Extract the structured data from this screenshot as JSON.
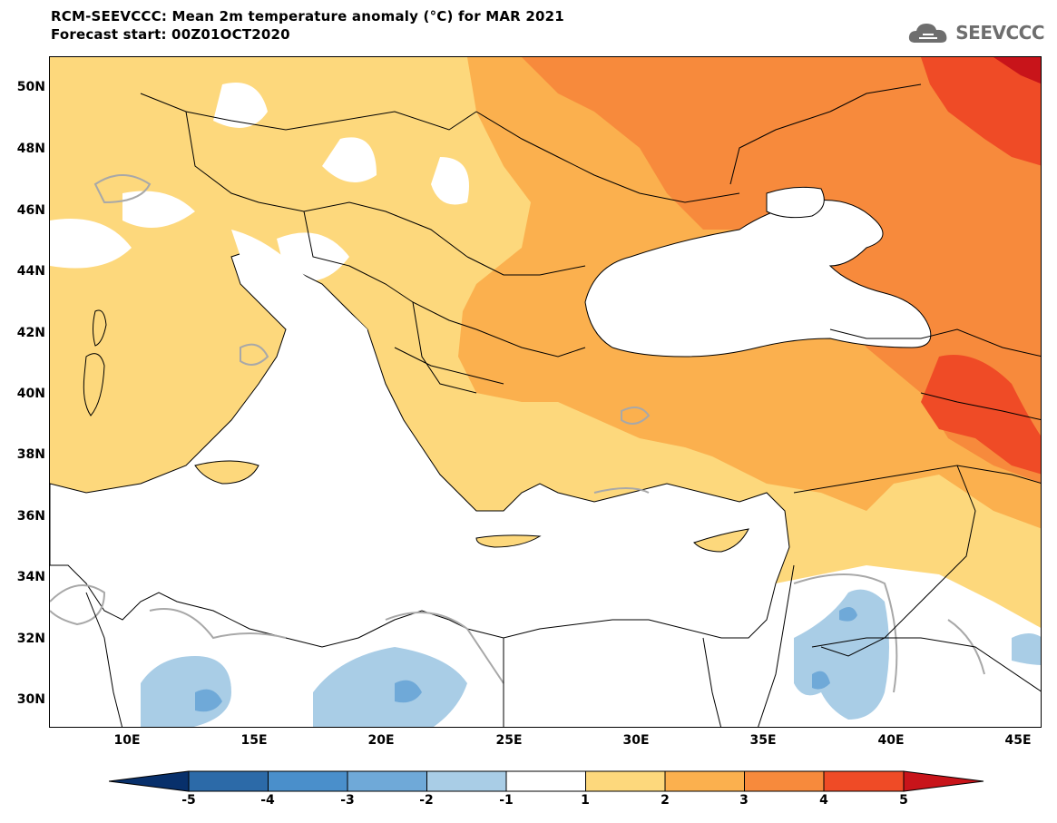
{
  "header": {
    "title_line1": "RCM-SEEVCCC: Mean 2m temperature anomaly (°C) for MAR 2021",
    "title_line2": "Forecast start: 00Z01OCT2020",
    "logo_text": "SEEVCCC"
  },
  "axes": {
    "lat_labels": [
      "50N",
      "48N",
      "46N",
      "44N",
      "42N",
      "40N",
      "38N",
      "36N",
      "34N",
      "32N",
      "30N"
    ],
    "lon_labels": [
      "10E",
      "15E",
      "20E",
      "25E",
      "30E",
      "35E",
      "40E",
      "45E"
    ]
  },
  "colorbar": {
    "levels": [
      "-5",
      "-4",
      "-3",
      "-2",
      "-1",
      "1",
      "2",
      "3",
      "4",
      "5"
    ],
    "colors": [
      "#08306b",
      "#2c6aa8",
      "#4a8fcb",
      "#6fa9d8",
      "#a9cde6",
      "#ffffff",
      "#fdd87c",
      "#fbb04e",
      "#f78a3c",
      "#ef4b26",
      "#c8141a"
    ]
  },
  "map": {
    "land_color_neutral": "#ffffff",
    "border_color": "#000000",
    "contour_color": "#a8a8a8"
  }
}
